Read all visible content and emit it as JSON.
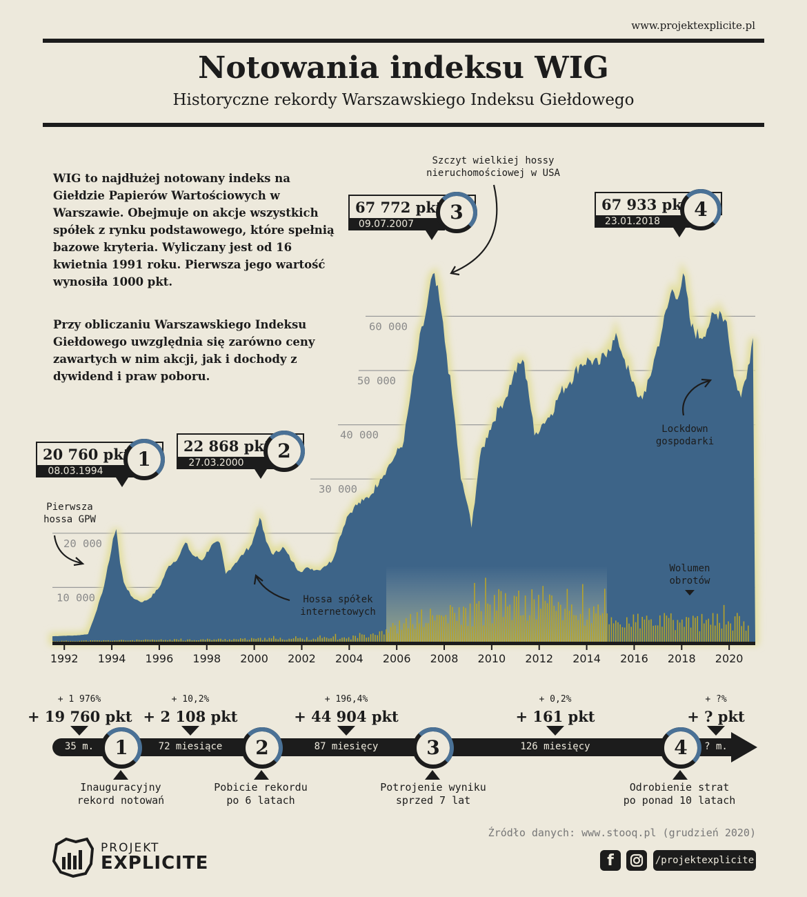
{
  "site_url": "www.projektexplicite.pl",
  "header": {
    "title": "Notowania indeksu WIG",
    "subtitle": "Historyczne rekordy Warszawskiego Indeksu Giełdowego"
  },
  "intro": {
    "p1": "WIG to najdłużej notowany indeks na Giełdzie Papierów Wartościowych w Warszawie. Obejmuje on akcje wszystkich spółek z rynku podstawowego, które spełnią bazowe kryteria. Wyliczany jest od 16 kwietnia 1991 roku. Pierwsza jego wartość wynosiła 1000 pkt.",
    "p2": "Przy obliczaniu Warszawskiego Indeksu Giełdowego uwzględnia się zarówno ceny zawartych w nim akcji, jak i dochody z dywidend i praw poboru."
  },
  "annotations": {
    "first_boom": "Pierwsza hossa GPW",
    "dotcom": "Hossa spółek internetowych",
    "us_peak": "Szczyt wielkiej hossy nieruchomościowej w USA",
    "lockdown": "Lockdown gospodarki",
    "volume": "Wolumen obrotów"
  },
  "records": [
    {
      "num": "1",
      "value": "20 760 pkt",
      "date": "08.03.1994"
    },
    {
      "num": "2",
      "value": "22 868 pkt",
      "date": "27.03.2000"
    },
    {
      "num": "3",
      "value": "67 772 pkt",
      "date": "09.07.2007"
    },
    {
      "num": "4",
      "value": "67 933 pkt",
      "date": "23.01.2018"
    }
  ],
  "colors": {
    "background": "#ede9dc",
    "ink": "#1c1c1c",
    "area": "#3d6488",
    "volume": "#b7a32a",
    "glow": "#e2de9c",
    "accent": "#4a7196"
  },
  "chart_data": {
    "type": "area",
    "title": "",
    "xlabel": "",
    "ylabel": "",
    "ylim": [
      0,
      70000
    ],
    "xlim": [
      1991.5,
      2021.1
    ],
    "x_ticks": [
      "1992",
      "1994",
      "1996",
      "1998",
      "2000",
      "2002",
      "2004",
      "2006",
      "2008",
      "2010",
      "2012",
      "2014",
      "2016",
      "2018",
      "2020"
    ],
    "y_ticks": [
      "10 000",
      "20 000",
      "30 000",
      "40 000",
      "50 000",
      "60 000"
    ],
    "grid": true,
    "series": [
      {
        "name": "",
        "x": [
          1991.5,
          1992.0,
          1992.5,
          1993.0,
          1993.3,
          1993.6,
          1993.9,
          1994.05,
          1994.19,
          1994.35,
          1994.5,
          1994.8,
          1995.0,
          1995.3,
          1995.6,
          1996.0,
          1996.4,
          1996.8,
          1997.1,
          1997.4,
          1997.8,
          1998.2,
          1998.55,
          1998.8,
          1999.2,
          1999.6,
          1999.9,
          2000.1,
          2000.23,
          2000.5,
          2000.8,
          2001.2,
          2001.6,
          2001.9,
          2002.3,
          2002.7,
          2002.95,
          2003.3,
          2003.6,
          2003.9,
          2004.2,
          2004.6,
          2004.9,
          2005.3,
          2005.6,
          2005.9,
          2006.3,
          2006.6,
          2006.9,
          2007.2,
          2007.52,
          2007.8,
          2008.1,
          2008.4,
          2008.7,
          2009.0,
          2009.15,
          2009.5,
          2009.9,
          2010.3,
          2010.6,
          2010.9,
          2011.3,
          2011.5,
          2011.8,
          2012.1,
          2012.5,
          2012.9,
          2013.3,
          2013.7,
          2014.1,
          2014.5,
          2014.9,
          2015.3,
          2015.6,
          2015.9,
          2016.2,
          2016.5,
          2016.9,
          2017.2,
          2017.6,
          2017.9,
          2018.06,
          2018.4,
          2018.8,
          2019.2,
          2019.6,
          2019.9,
          2020.2,
          2020.5,
          2020.8,
          2021.0
        ],
        "values": [
          1000,
          1100,
          1150,
          1400,
          5000,
          9000,
          15000,
          19000,
          20760,
          14500,
          11000,
          8500,
          7800,
          7300,
          8000,
          10000,
          14000,
          15500,
          18300,
          16000,
          15000,
          17800,
          18200,
          12500,
          14500,
          16500,
          18000,
          21000,
          22868,
          18500,
          16000,
          17500,
          14800,
          13000,
          13600,
          13200,
          13900,
          15000,
          19300,
          23000,
          24800,
          26000,
          27000,
          30000,
          32000,
          34000,
          37000,
          46000,
          54000,
          60000,
          67772,
          63000,
          53000,
          43000,
          30000,
          25000,
          21000,
          34000,
          39000,
          43000,
          45000,
          49000,
          52000,
          48000,
          38000,
          40000,
          42000,
          46000,
          48000,
          51000,
          52000,
          51000,
          54000,
          56000,
          52000,
          48000,
          45000,
          46000,
          53000,
          58000,
          65000,
          64000,
          67933,
          58000,
          56000,
          59000,
          61000,
          59000,
          49000,
          45000,
          51000,
          56000
        ]
      }
    ],
    "volume_note": "Wolumen obrotów"
  },
  "timeline": {
    "segments": [
      {
        "label": "35 m."
      },
      {
        "label": "72 miesiące"
      },
      {
        "label": "87 miesięcy"
      },
      {
        "label": "126 miesięcy"
      },
      {
        "label": "? m."
      }
    ],
    "gains": [
      {
        "pct": "+ 1 976%",
        "pts": "+ 19 760 pkt"
      },
      {
        "pct": "+ 10,2%",
        "pts": "+ 2 108 pkt"
      },
      {
        "pct": "+ 196,4%",
        "pts": "+ 44 904 pkt"
      },
      {
        "pct": "+ 0,2%",
        "pts": "+ 161 pkt"
      },
      {
        "pct": "+ ?%",
        "pts": "+ ? pkt"
      }
    ],
    "milestones": [
      {
        "num": "1",
        "desc": "Inauguracyjny rekord notowań"
      },
      {
        "num": "2",
        "desc": "Pobicie rekordu po 6 latach"
      },
      {
        "num": "3",
        "desc": "Potrojenie wyniku sprzed 7 lat"
      },
      {
        "num": "4",
        "desc": "Odrobienie strat po ponad 10 latach"
      }
    ]
  },
  "footer": {
    "source": "Źródło danych: www.stooq.pl (grudzień 2020)",
    "brand_top": "PROJEKT",
    "brand_bottom": "EXPLICITE",
    "handle": "/projektexplicite",
    "icons": [
      "facebook-icon",
      "instagram-icon"
    ]
  }
}
